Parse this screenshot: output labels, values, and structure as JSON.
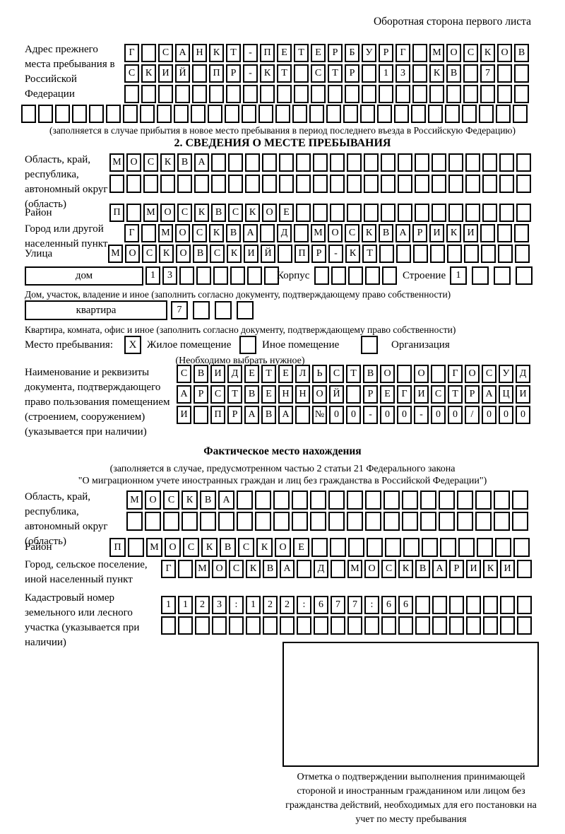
{
  "page": {
    "header_note": "Оборотная сторона первого листа"
  },
  "prev_address": {
    "label": "Адрес прежнего места пребывания в Российской Федерации",
    "rows": [
      [
        "Г",
        "",
        "С",
        "А",
        "Н",
        "К",
        "Т",
        "-",
        "П",
        "Е",
        "Т",
        "Е",
        "Р",
        "Б",
        "У",
        "Р",
        "Г",
        "",
        "М",
        "О",
        "С",
        "К",
        "О",
        "В"
      ],
      [
        "С",
        "К",
        "И",
        "Й",
        "",
        "П",
        "Р",
        "-",
        "К",
        "Т",
        "",
        "С",
        "Т",
        "Р",
        "",
        "1",
        "3",
        "",
        "К",
        "В",
        "",
        "7",
        "",
        ""
      ],
      [
        "",
        "",
        "",
        "",
        "",
        "",
        "",
        "",
        "",
        "",
        "",
        "",
        "",
        "",
        "",
        "",
        "",
        "",
        "",
        "",
        "",
        "",
        "",
        ""
      ],
      [
        "",
        "",
        "",
        "",
        "",
        "",
        "",
        "",
        "",
        "",
        "",
        "",
        "",
        "",
        "",
        "",
        "",
        "",
        "",
        "",
        "",
        "",
        "",
        "",
        "",
        "",
        "",
        "",
        "",
        ""
      ]
    ],
    "note": "(заполняется в случае прибытия в новое место пребывания в период последнего въезда в Российскую Федерацию)"
  },
  "section2": {
    "title": "2. СВЕДЕНИЯ О МЕСТЕ ПРЕБЫВАНИЯ",
    "region": {
      "label": "Область, край, республика, автономный округ (область)",
      "rows": [
        [
          "М",
          "О",
          "С",
          "К",
          "В",
          "А",
          "",
          "",
          "",
          "",
          "",
          "",
          "",
          "",
          "",
          "",
          "",
          "",
          "",
          "",
          "",
          "",
          "",
          "",
          ""
        ],
        [
          "",
          "",
          "",
          "",
          "",
          "",
          "",
          "",
          "",
          "",
          "",
          "",
          "",
          "",
          "",
          "",
          "",
          "",
          "",
          "",
          "",
          "",
          "",
          "",
          ""
        ]
      ]
    },
    "district": {
      "label": "Район",
      "cells": [
        "П",
        "",
        "М",
        "О",
        "С",
        "К",
        "В",
        "С",
        "К",
        "О",
        "Е",
        "",
        "",
        "",
        "",
        "",
        "",
        "",
        "",
        "",
        "",
        "",
        "",
        "",
        ""
      ]
    },
    "city": {
      "label": "Город или другой населенный пункт",
      "cells": [
        "Г",
        "",
        "М",
        "О",
        "С",
        "К",
        "В",
        "А",
        "",
        "Д",
        "",
        "М",
        "О",
        "С",
        "К",
        "В",
        "А",
        "Р",
        "И",
        "К",
        "И",
        "",
        "",
        ""
      ]
    },
    "street": {
      "label": "Улица",
      "cells": [
        "М",
        "О",
        "С",
        "К",
        "О",
        "В",
        "С",
        "К",
        "И",
        "Й",
        "",
        "П",
        "Р",
        "-",
        "К",
        "Т",
        "",
        "",
        "",
        "",
        "",
        "",
        "",
        "",
        ""
      ]
    },
    "house": {
      "box_label": "дом",
      "cells": [
        "1",
        "3",
        "",
        "",
        "",
        "",
        "",
        ""
      ],
      "korpus_label": "Корпус",
      "korpus_cells": [
        "",
        "",
        "",
        "",
        ""
      ],
      "stroenie_label": "Строение",
      "stroenie_cells": [
        "1",
        "",
        "",
        ""
      ]
    },
    "house_note": "Дом, участок, владение и иное (заполнить согласно документу, подтверждающему право собственности)",
    "apartment": {
      "box_label": "квартира",
      "cells": [
        "7",
        "",
        "",
        ""
      ]
    },
    "apartment_note": "Квартира, комната, офис и иное (заполнить согласно документу, подтверждающему право собственности)",
    "stay_type": {
      "label": "Место пребывания:",
      "options": [
        {
          "label": "Жилое помещение",
          "checked": "X"
        },
        {
          "label": "Иное помещение",
          "checked": ""
        },
        {
          "label": "Организация",
          "checked": ""
        }
      ],
      "note": "(Необходимо выбрать нужное)"
    },
    "document": {
      "label": "Наименование и реквизиты документа, подтверждающего право пользования помещением (строением, сооружением) (указывается при наличии)",
      "rows": [
        [
          "С",
          "В",
          "И",
          "Д",
          "Е",
          "Т",
          "Е",
          "Л",
          "Ь",
          "С",
          "Т",
          "В",
          "О",
          "",
          "О",
          "",
          "Г",
          "О",
          "С",
          "У",
          "Д"
        ],
        [
          "А",
          "Р",
          "С",
          "Т",
          "В",
          "Е",
          "Н",
          "Н",
          "О",
          "Й",
          "",
          "Р",
          "Е",
          "Г",
          "И",
          "С",
          "Т",
          "Р",
          "А",
          "Ц",
          "И"
        ],
        [
          "И",
          "",
          "П",
          "Р",
          "А",
          "В",
          "А",
          "",
          "№",
          "0",
          "0",
          "-",
          "0",
          "0",
          "-",
          "0",
          "0",
          "/",
          "0",
          "0",
          "0"
        ]
      ]
    }
  },
  "actual_location": {
    "title": "Фактическое место нахождения",
    "note1": "(заполняется в случае, предусмотренном частью 2 статьи 21 Федерального закона",
    "note2": "\"О миграционном учете иностранных граждан и лиц без гражданства в Российской Федерации\")",
    "region": {
      "label": "Область, край, республика, автономный округ (область)",
      "rows": [
        [
          "М",
          "О",
          "С",
          "К",
          "В",
          "А",
          "",
          "",
          "",
          "",
          "",
          "",
          "",
          "",
          "",
          "",
          "",
          "",
          "",
          "",
          "",
          ""
        ],
        [
          "",
          "",
          "",
          "",
          "",
          "",
          "",
          "",
          "",
          "",
          "",
          "",
          "",
          "",
          "",
          "",
          "",
          "",
          "",
          "",
          "",
          ""
        ]
      ]
    },
    "district": {
      "label": "Район",
      "cells": [
        "П",
        "",
        "М",
        "О",
        "С",
        "К",
        "В",
        "С",
        "К",
        "О",
        "Е",
        "",
        "",
        "",
        "",
        "",
        "",
        "",
        "",
        "",
        "",
        "",
        ""
      ]
    },
    "city": {
      "label": "Город, сельское поселение, иной населенный пункт",
      "cells": [
        "Г",
        "",
        "М",
        "О",
        "С",
        "К",
        "В",
        "А",
        "",
        "Д",
        "",
        "М",
        "О",
        "С",
        "К",
        "В",
        "А",
        "Р",
        "И",
        "К",
        "И",
        ""
      ]
    },
    "cadastral": {
      "label": "Кадастровый номер земельного или лесного участка (указывается при наличии)",
      "rows": [
        [
          "1",
          "1",
          "2",
          "3",
          ":",
          "1",
          "2",
          "2",
          ":",
          "6",
          "7",
          "7",
          ":",
          "6",
          "6",
          "",
          "",
          "",
          "",
          "",
          "",
          ""
        ],
        [
          "",
          "",
          "",
          "",
          "",
          "",
          "",
          "",
          "",
          "",
          "",
          "",
          "",
          "",
          "",
          "",
          "",
          "",
          "",
          "",
          "",
          ""
        ]
      ]
    },
    "stamp_caption": "Отметка о подтверждении выполнения принимающей стороной и иностранным гражданином или лицом без гражданства действий, необходимых для его постановки на учет по месту пребывания"
  }
}
